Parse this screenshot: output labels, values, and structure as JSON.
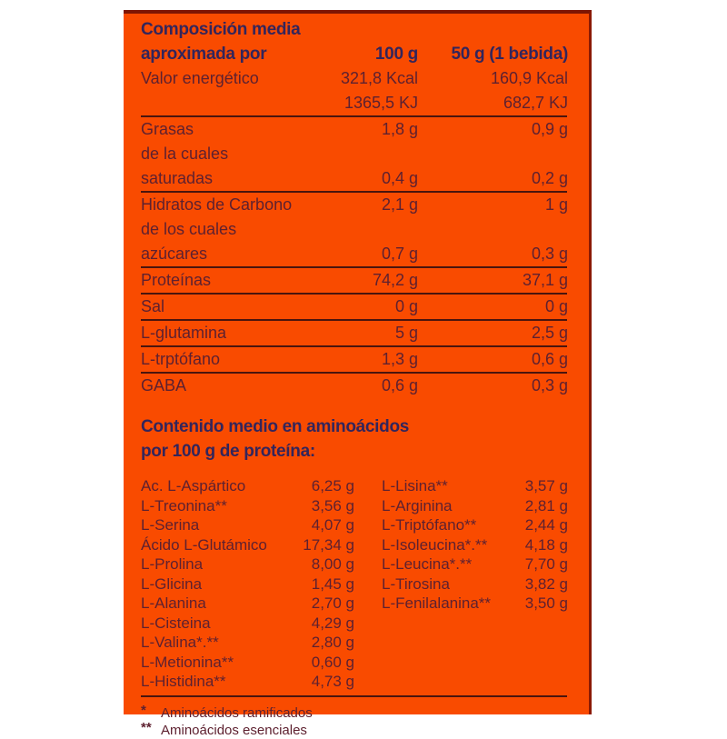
{
  "label": {
    "colors": {
      "panel_bg": "#F94B00",
      "heading_text": "#33255B",
      "body_text": "#5E2130",
      "rule_line": "#4A150E",
      "top_border": "#7E1503"
    },
    "composition": {
      "title_line1": "Composición media",
      "title_line2": "aproximada por",
      "col_100": "100 g",
      "col_50": "50 g (1 bebida)",
      "rows": [
        {
          "label": "Valor energético",
          "v100": "321,8 Kcal",
          "v50": "160,9 Kcal",
          "rule": false
        },
        {
          "label": "",
          "v100": "1365,5 KJ",
          "v50": "682,7 KJ",
          "rule": true
        },
        {
          "label": "Grasas",
          "v100": "1,8 g",
          "v50": "0,9 g",
          "rule": false
        },
        {
          "label": "de la cuales",
          "v100": "",
          "v50": "",
          "rule": false
        },
        {
          "label": "saturadas",
          "v100": "0,4 g",
          "v50": "0,2 g",
          "rule": true
        },
        {
          "label": "Hidratos de Carbono",
          "v100": "2,1 g",
          "v50": "1 g",
          "rule": false
        },
        {
          "label": "de los cuales",
          "v100": "",
          "v50": "",
          "rule": false
        },
        {
          "label": "azúcares",
          "v100": "0,7 g",
          "v50": "0,3 g",
          "rule": true
        },
        {
          "label": "Proteínas",
          "v100": "74,2 g",
          "v50": "37,1 g",
          "rule": true
        },
        {
          "label": "Sal",
          "v100": "0 g",
          "v50": "0 g",
          "rule": true
        },
        {
          "label": "L-glutamina",
          "v100": "5 g",
          "v50": "2,5 g",
          "rule": true
        },
        {
          "label": "L-trptófano",
          "v100": "1,3 g",
          "v50": "0,6 g",
          "rule": true
        },
        {
          "label": "GABA",
          "v100": "0,6 g",
          "v50": "0,3 g",
          "rule": false
        }
      ]
    },
    "amino": {
      "title_line1": "Contenido medio en aminoácidos",
      "title_line2": "por 100 g de proteína:",
      "left": [
        {
          "name": "Ac. L-Aspártico",
          "value": "6,25 g"
        },
        {
          "name": "L-Treonina**",
          "value": "3,56 g"
        },
        {
          "name": "L-Serina",
          "value": "4,07 g"
        },
        {
          "name": "Ácido L-Glutámico",
          "value": "17,34 g"
        },
        {
          "name": "L-Prolina",
          "value": "8,00 g"
        },
        {
          "name": "L-Glicina",
          "value": "1,45 g"
        },
        {
          "name": "L-Alanina",
          "value": "2,70 g"
        },
        {
          "name": "L-Cisteina",
          "value": "4,29 g"
        },
        {
          "name": "L-Valina*.**",
          "value": "2,80 g"
        },
        {
          "name": "L-Metionina**",
          "value": "0,60 g"
        },
        {
          "name": "L-Histidina**",
          "value": "4,73 g"
        }
      ],
      "right": [
        {
          "name": "L-Lisina**",
          "value": "3,57 g"
        },
        {
          "name": "L-Arginina",
          "value": "2,81 g"
        },
        {
          "name": "L-Triptófano**",
          "value": "2,44 g"
        },
        {
          "name": "L-Isoleucina*.**",
          "value": "4,18 g"
        },
        {
          "name": "L-Leucina*.**",
          "value": "7,70 g"
        },
        {
          "name": "L-Tirosina",
          "value": "3,82 g"
        },
        {
          "name": "L-Fenilalanina**",
          "value": "3,50 g"
        }
      ]
    },
    "footnotes": [
      {
        "marker": "*",
        "text": "Aminoácidos ramificados"
      },
      {
        "marker": "**",
        "text": "Aminoácidos esenciales"
      }
    ]
  }
}
